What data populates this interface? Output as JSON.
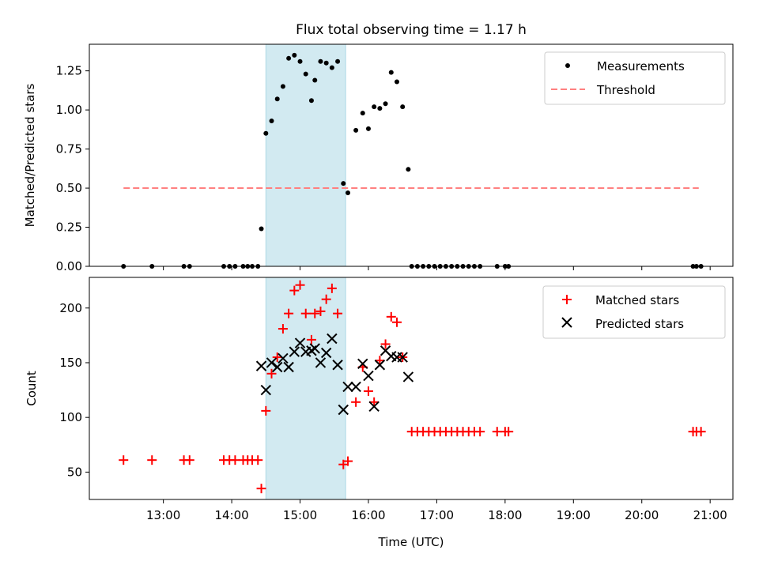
{
  "title": "Flux total observing time = 1.17 h",
  "colors": {
    "shade": "#add8e6",
    "threshold": "#ff8080",
    "matched": "#ff0000",
    "predicted": "#000000",
    "measurement": "#000000"
  },
  "chart_data": [
    {
      "type": "scatter",
      "ylabel": "Matched/Predicted stars",
      "ylim": [
        0,
        1.42
      ],
      "yticks": [
        "0.00",
        "0.25",
        "0.50",
        "0.75",
        "1.00",
        "1.25"
      ],
      "legend": {
        "placement": "top-right",
        "entries": [
          "Measurements",
          "Threshold"
        ]
      },
      "shaded_interval": [
        "14:30",
        "15:40"
      ],
      "threshold": {
        "name": "Threshold",
        "y": 0.5,
        "x_range": [
          "12:25",
          "20:50"
        ]
      },
      "series": [
        {
          "name": "Measurements",
          "points": [
            [
              "12:25",
              0
            ],
            [
              "12:50",
              0
            ],
            [
              "13:18",
              0
            ],
            [
              "13:23",
              0
            ],
            [
              "13:53",
              0
            ],
            [
              "13:58",
              0
            ],
            [
              "14:03",
              0
            ],
            [
              "14:10",
              0
            ],
            [
              "14:14",
              0
            ],
            [
              "14:18",
              0
            ],
            [
              "14:23",
              0
            ],
            [
              "14:26",
              0.24
            ],
            [
              "14:30",
              0.85
            ],
            [
              "14:35",
              0.93
            ],
            [
              "14:40",
              1.07
            ],
            [
              "14:45",
              1.15
            ],
            [
              "14:50",
              1.33
            ],
            [
              "14:55",
              1.35
            ],
            [
              "15:00",
              1.31
            ],
            [
              "15:05",
              1.23
            ],
            [
              "15:10",
              1.06
            ],
            [
              "15:13",
              1.19
            ],
            [
              "15:18",
              1.31
            ],
            [
              "15:23",
              1.3
            ],
            [
              "15:28",
              1.27
            ],
            [
              "15:33",
              1.31
            ],
            [
              "15:38",
              0.53
            ],
            [
              "15:42",
              0.47
            ],
            [
              "15:49",
              0.87
            ],
            [
              "15:55",
              0.98
            ],
            [
              "16:00",
              0.88
            ],
            [
              "16:05",
              1.02
            ],
            [
              "16:10",
              1.01
            ],
            [
              "16:15",
              1.04
            ],
            [
              "16:20",
              1.24
            ],
            [
              "16:25",
              1.18
            ],
            [
              "16:30",
              1.02
            ],
            [
              "16:35",
              0.62
            ],
            [
              "16:38",
              0
            ],
            [
              "16:43",
              0
            ],
            [
              "16:48",
              0
            ],
            [
              "16:53",
              0
            ],
            [
              "16:58",
              0
            ],
            [
              "17:03",
              0
            ],
            [
              "17:08",
              0
            ],
            [
              "17:13",
              0
            ],
            [
              "17:18",
              0
            ],
            [
              "17:23",
              0
            ],
            [
              "17:28",
              0
            ],
            [
              "17:33",
              0
            ],
            [
              "17:38",
              0
            ],
            [
              "17:53",
              0
            ],
            [
              "18:00",
              0
            ],
            [
              "18:03",
              0
            ],
            [
              "20:45",
              0
            ],
            [
              "20:48",
              0
            ],
            [
              "20:52",
              0
            ]
          ]
        }
      ]
    },
    {
      "type": "scatter",
      "xlabel": "Time (UTC)",
      "ylabel": "Count",
      "ylim": [
        25,
        228
      ],
      "yticks": [
        "50",
        "100",
        "150",
        "200"
      ],
      "xticks": [
        "13:00",
        "14:00",
        "15:00",
        "16:00",
        "17:00",
        "18:00",
        "19:00",
        "20:00",
        "21:00"
      ],
      "xlim": [
        "11:55",
        "21:20"
      ],
      "legend": {
        "placement": "top-right",
        "entries": [
          "Matched stars",
          "Predicted stars"
        ]
      },
      "shaded_interval": [
        "14:30",
        "15:40"
      ],
      "series": [
        {
          "name": "Matched stars",
          "points": [
            [
              "12:25",
              61
            ],
            [
              "12:50",
              61
            ],
            [
              "13:18",
              61
            ],
            [
              "13:23",
              61
            ],
            [
              "13:53",
              61
            ],
            [
              "13:58",
              61
            ],
            [
              "14:03",
              61
            ],
            [
              "14:10",
              61
            ],
            [
              "14:14",
              61
            ],
            [
              "14:18",
              61
            ],
            [
              "14:23",
              61
            ],
            [
              "14:26",
              35
            ],
            [
              "14:30",
              106
            ],
            [
              "14:35",
              140
            ],
            [
              "14:40",
              155
            ],
            [
              "14:45",
              181
            ],
            [
              "14:50",
              195
            ],
            [
              "14:55",
              216
            ],
            [
              "15:00",
              221
            ],
            [
              "15:05",
              195
            ],
            [
              "15:10",
              171
            ],
            [
              "15:13",
              195
            ],
            [
              "15:18",
              197
            ],
            [
              "15:23",
              208
            ],
            [
              "15:28",
              218
            ],
            [
              "15:33",
              195
            ],
            [
              "15:38",
              57
            ],
            [
              "15:42",
              60
            ],
            [
              "15:49",
              114
            ],
            [
              "15:55",
              146
            ],
            [
              "16:00",
              124
            ],
            [
              "16:05",
              114
            ],
            [
              "16:10",
              152
            ],
            [
              "16:15",
              167
            ],
            [
              "16:20",
              192
            ],
            [
              "16:25",
              187
            ],
            [
              "16:30",
              155
            ],
            [
              "16:38",
              87
            ],
            [
              "16:43",
              87
            ],
            [
              "16:48",
              87
            ],
            [
              "16:53",
              87
            ],
            [
              "16:58",
              87
            ],
            [
              "17:03",
              87
            ],
            [
              "17:08",
              87
            ],
            [
              "17:13",
              87
            ],
            [
              "17:18",
              87
            ],
            [
              "17:23",
              87
            ],
            [
              "17:28",
              87
            ],
            [
              "17:33",
              87
            ],
            [
              "17:38",
              87
            ],
            [
              "17:53",
              87
            ],
            [
              "18:00",
              87
            ],
            [
              "18:03",
              87
            ],
            [
              "20:45",
              87
            ],
            [
              "20:48",
              87
            ],
            [
              "20:52",
              87
            ]
          ]
        },
        {
          "name": "Predicted stars",
          "points": [
            [
              "14:26",
              147
            ],
            [
              "14:30",
              125
            ],
            [
              "14:35",
              150
            ],
            [
              "14:40",
              146
            ],
            [
              "14:45",
              154
            ],
            [
              "14:50",
              146
            ],
            [
              "14:55",
              160
            ],
            [
              "15:00",
              168
            ],
            [
              "15:05",
              160
            ],
            [
              "15:10",
              161
            ],
            [
              "15:13",
              163
            ],
            [
              "15:18",
              150
            ],
            [
              "15:23",
              159
            ],
            [
              "15:28",
              172
            ],
            [
              "15:33",
              148
            ],
            [
              "15:38",
              107
            ],
            [
              "15:42",
              128
            ],
            [
              "15:49",
              128
            ],
            [
              "15:55",
              149
            ],
            [
              "16:00",
              138
            ],
            [
              "16:05",
              110
            ],
            [
              "16:10",
              148
            ],
            [
              "16:15",
              161
            ],
            [
              "16:20",
              156
            ],
            [
              "16:25",
              155
            ],
            [
              "16:30",
              155
            ],
            [
              "16:35",
              137
            ]
          ]
        }
      ]
    }
  ]
}
